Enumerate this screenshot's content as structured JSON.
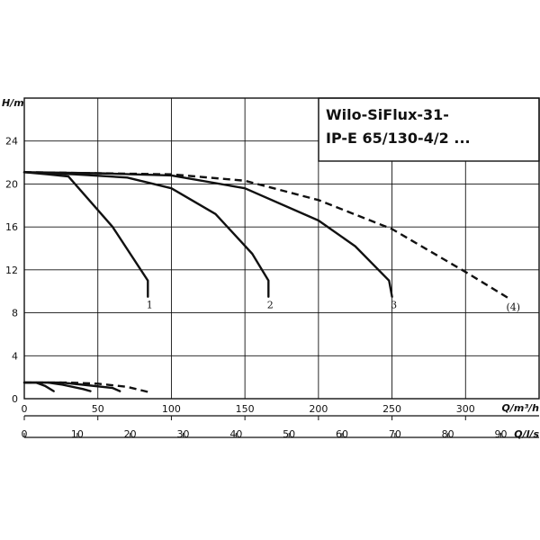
{
  "chart_data": {
    "type": "line",
    "title_lines": [
      "Wilo-SiFlux-31-",
      "IP-E 65/130-4/2 ..."
    ],
    "ylabel": "H/m",
    "xlabel": "Q/m³/h",
    "x2label": "Q/l/s",
    "xlim": [
      0,
      350
    ],
    "ylim": [
      0,
      28
    ],
    "yticks": [
      "0",
      "4",
      "8",
      "12",
      "16",
      "20",
      "24"
    ],
    "xticks": [
      "0",
      "50",
      "100",
      "150",
      "200",
      "250",
      "300"
    ],
    "x2ticks": [
      "0",
      "10",
      "20",
      "30",
      "40",
      "50",
      "60",
      "70",
      "80",
      "90"
    ],
    "x2ticks_values": [
      0,
      10,
      20,
      30,
      40,
      50,
      60,
      70,
      80,
      90
    ],
    "grid": true,
    "series": [
      {
        "name": "1",
        "dashed": false,
        "points": [
          [
            0,
            21.1
          ],
          [
            16,
            20.9
          ],
          [
            30,
            20.7
          ],
          [
            60,
            16
          ],
          [
            84,
            11
          ],
          [
            84,
            9.5
          ]
        ]
      },
      {
        "name": "2",
        "dashed": false,
        "points": [
          [
            0,
            21.1
          ],
          [
            34,
            20.9
          ],
          [
            70,
            20.6
          ],
          [
            100,
            19.6
          ],
          [
            130,
            17.2
          ],
          [
            155,
            13.5
          ],
          [
            166,
            11
          ],
          [
            166,
            9.5
          ]
        ]
      },
      {
        "name": "3",
        "dashed": false,
        "points": [
          [
            0,
            21.1
          ],
          [
            50,
            21
          ],
          [
            100,
            20.8
          ],
          [
            150,
            19.6
          ],
          [
            200,
            16.6
          ],
          [
            225,
            14.2
          ],
          [
            248,
            11
          ],
          [
            250,
            9.5
          ]
        ]
      },
      {
        "name": "(4)",
        "dashed": true,
        "points": [
          [
            0,
            21.1
          ],
          [
            100,
            20.9
          ],
          [
            150,
            20.3
          ],
          [
            200,
            18.5
          ],
          [
            250,
            15.8
          ],
          [
            300,
            11.8
          ],
          [
            330,
            9.3
          ]
        ]
      },
      {
        "name": "",
        "dashed": false,
        "points": [
          [
            0,
            1.5
          ],
          [
            8,
            1.5
          ],
          [
            14,
            1.2
          ],
          [
            20,
            0.7
          ]
        ]
      },
      {
        "name": "",
        "dashed": false,
        "points": [
          [
            0,
            1.5
          ],
          [
            16,
            1.5
          ],
          [
            26,
            1.3
          ],
          [
            40,
            0.9
          ],
          [
            45,
            0.7
          ]
        ]
      },
      {
        "name": "",
        "dashed": false,
        "points": [
          [
            0,
            1.5
          ],
          [
            25,
            1.5
          ],
          [
            40,
            1.3
          ],
          [
            60,
            1
          ],
          [
            65,
            0.7
          ]
        ]
      },
      {
        "name": "",
        "dashed": true,
        "points": [
          [
            0,
            1.5
          ],
          [
            30,
            1.5
          ],
          [
            50,
            1.4
          ],
          [
            70,
            1.1
          ],
          [
            85,
            0.6
          ]
        ]
      }
    ],
    "curve_labels": [
      "1",
      "2",
      "3",
      "(4)"
    ]
  }
}
